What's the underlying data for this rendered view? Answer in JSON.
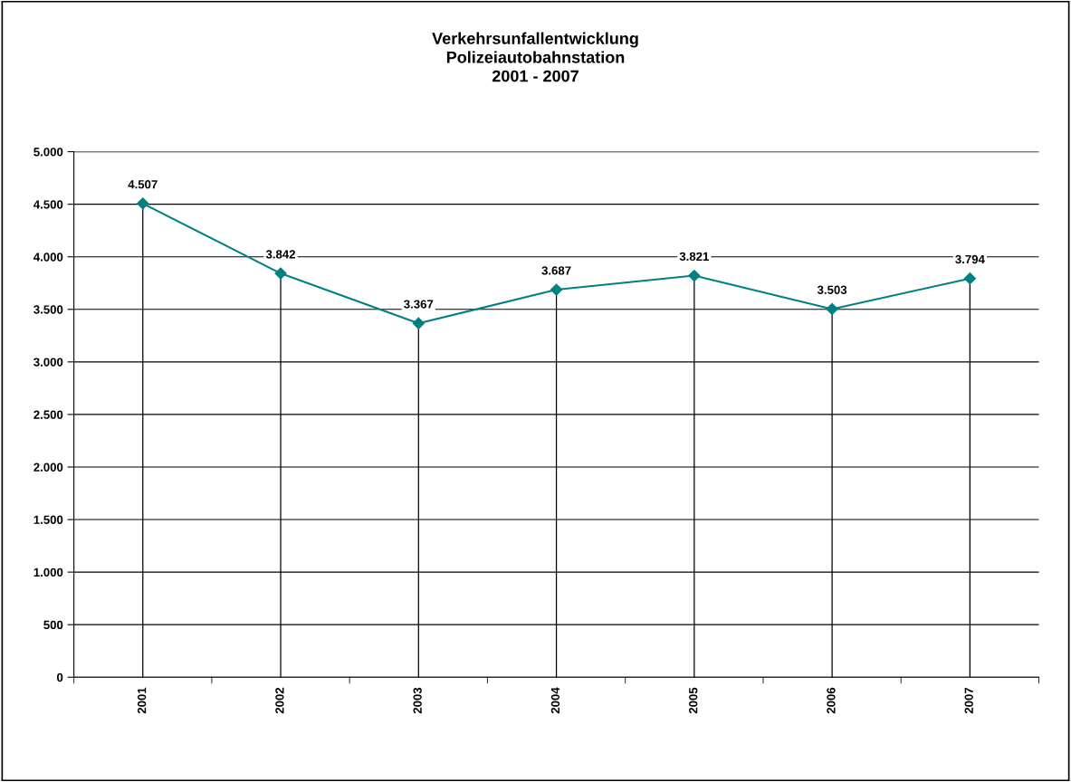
{
  "chart_data": {
    "type": "line",
    "title": "Verkehrsunfallentwicklung\nPolizeiautobahnstation\n2001 - 2007",
    "categories": [
      "2001",
      "2002",
      "2003",
      "2004",
      "2005",
      "2006",
      "2007"
    ],
    "series": [
      {
        "color": "#008080",
        "values": [
          4507,
          3842,
          3367,
          3687,
          3821,
          3503,
          3794
        ],
        "value_labels": [
          "4.507",
          "3.842",
          "3.367",
          "3.687",
          "3.821",
          "3.503",
          "3.794"
        ]
      }
    ],
    "ylim": [
      0,
      5000
    ],
    "yticks": [
      {
        "value": 0,
        "label": "0"
      },
      {
        "value": 500,
        "label": "500"
      },
      {
        "value": 1000,
        "label": "1.000"
      },
      {
        "value": 1500,
        "label": "1.500"
      },
      {
        "value": 2000,
        "label": "2.000"
      },
      {
        "value": 2500,
        "label": "2.500"
      },
      {
        "value": 3000,
        "label": "3.000"
      },
      {
        "value": 3500,
        "label": "3.500"
      },
      {
        "value": 4000,
        "label": "4.000"
      },
      {
        "value": 4500,
        "label": "4.500"
      },
      {
        "value": 5000,
        "label": "5.000"
      }
    ],
    "grid": true,
    "marker": "diamond",
    "line_style": "solid",
    "legend": false
  }
}
